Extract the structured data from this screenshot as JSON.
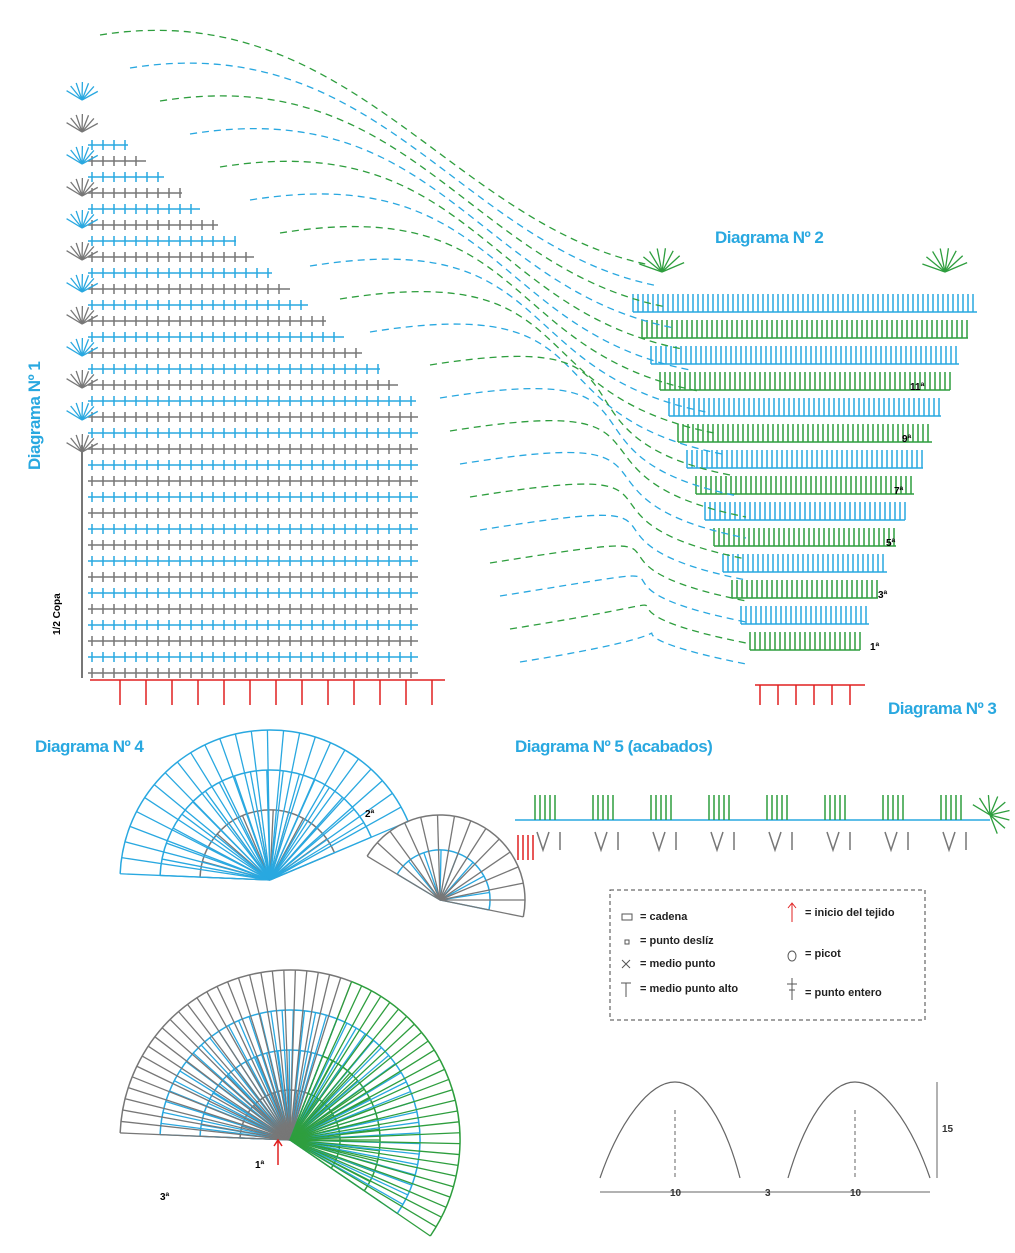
{
  "diagrams": {
    "d1": "Diagrama Nº 1",
    "d2": "Diagrama Nº 2",
    "d3": "Diagrama Nº 3",
    "d4": "Diagrama Nº 4",
    "d5": "Diagrama Nº 5 (acabados)"
  },
  "half_cup": "1/2 Copa",
  "diagram2_rows": [
    "1ª",
    "3ª",
    "5ª",
    "7ª",
    "9ª",
    "11ª"
  ],
  "diagram4_rows": [
    "1ª",
    "2ª",
    "3ª"
  ],
  "legend": [
    "= cadena",
    "= punto deslíz",
    "= medio punto",
    "= medio punto alto",
    "= inicio del tejido",
    "= picot",
    "= punto entero"
  ],
  "dimensions": [
    "10",
    "3",
    "10",
    "15"
  ]
}
